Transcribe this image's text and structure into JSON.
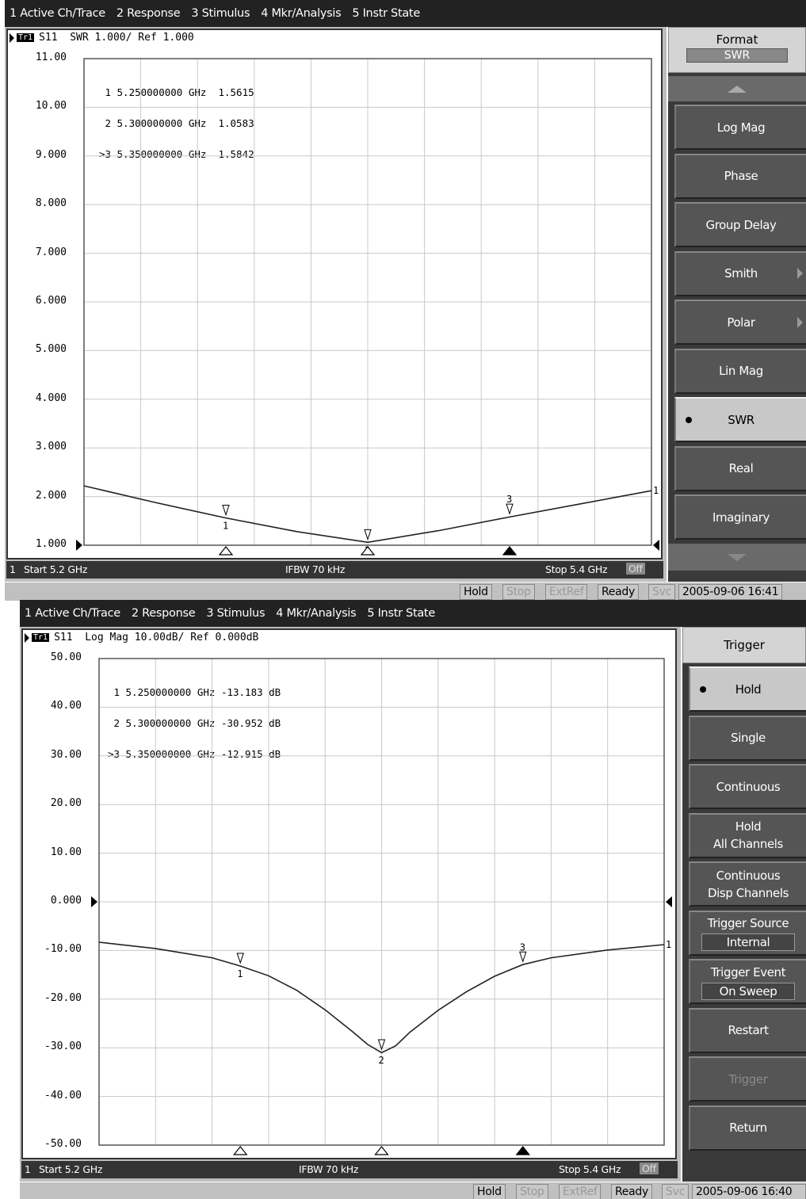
{
  "screens": [
    {
      "menu": [
        "1 Active Ch/Trace",
        "2 Response",
        "3 Stimulus",
        "4 Mkr/Analysis",
        "5 Instr State"
      ],
      "trace": {
        "badge": "Tr1",
        "header": "S11  SWR 1.000/ Ref 1.000"
      },
      "y_ticks": [
        "11.00",
        "10.00",
        "9.000",
        "8.000",
        "7.000",
        "6.000",
        "5.000",
        "4.000",
        "3.000",
        "2.000",
        "1.000"
      ],
      "markers": [
        {
          "num": "1",
          "freq": "5.250000000 GHz",
          "value": "1.5615"
        },
        {
          "num": "2",
          "freq": "5.300000000 GHz",
          "value": "1.0583"
        },
        {
          "num": ">3",
          "freq": "5.350000000 GHz",
          "value": "1.5842"
        }
      ],
      "status": {
        "channel": "1",
        "start": "Start 5.2 GHz",
        "ifbw": "IFBW 70 kHz",
        "stop": "Stop 5.4 GHz",
        "off": "Off"
      },
      "bottom": [
        "Hold",
        "Stop",
        "ExtRef",
        "Ready",
        "Svc",
        "2005-09-06 16:41"
      ],
      "softkeys": {
        "title": "Format",
        "title_value": "SWR",
        "items": [
          {
            "label": "Log Mag"
          },
          {
            "label": "Phase"
          },
          {
            "label": "Group Delay"
          },
          {
            "label": "Smith",
            "submenu": true
          },
          {
            "label": "Polar",
            "submenu": true
          },
          {
            "label": "Lin Mag"
          },
          {
            "label": "SWR",
            "selected": true
          },
          {
            "label": "Real"
          },
          {
            "label": "Imaginary"
          }
        ]
      },
      "chart_data": {
        "type": "line",
        "title": "S11  SWR 1.000/ Ref 1.000",
        "x_start_ghz": 5.2,
        "x_stop_ghz": 5.4,
        "ylim": [
          1,
          11
        ],
        "series": [
          {
            "x": [
              5.2,
              5.225,
              5.25,
              5.275,
              5.3,
              5.325,
              5.35,
              5.375,
              5.4
            ],
            "y": [
              2.22,
              1.88,
              1.56,
              1.28,
              1.06,
              1.3,
              1.58,
              1.85,
              2.12
            ]
          }
        ],
        "marker_x": [
          5.25,
          5.3,
          5.35
        ],
        "marker_y": [
          1.5615,
          1.0583,
          1.5842
        ],
        "marker_labels": [
          "1",
          "2",
          "3"
        ],
        "ref_value": 1.0,
        "end_label": "1"
      }
    },
    {
      "menu": [
        "1 Active Ch/Trace",
        "2 Response",
        "3 Stimulus",
        "4 Mkr/Analysis",
        "5 Instr State"
      ],
      "trace": {
        "badge": "Tr1",
        "header": "S11  Log Mag 10.00dB/ Ref 0.000dB"
      },
      "y_ticks": [
        "50.00",
        "40.00",
        "30.00",
        "20.00",
        "10.00",
        "0.000",
        "-10.00",
        "-20.00",
        "-30.00",
        "-40.00",
        "-50.00"
      ],
      "markers": [
        {
          "num": "1",
          "freq": "5.250000000 GHz",
          "value": "-13.183 dB"
        },
        {
          "num": "2",
          "freq": "5.300000000 GHz",
          "value": "-30.952 dB"
        },
        {
          "num": ">3",
          "freq": "5.350000000 GHz",
          "value": "-12.915 dB"
        }
      ],
      "status": {
        "channel": "1",
        "start": "Start 5.2 GHz",
        "ifbw": "IFBW 70 kHz",
        "stop": "Stop 5.4 GHz",
        "off": "Off"
      },
      "bottom": [
        "Hold",
        "Stop",
        "ExtRef",
        "Ready",
        "Svc",
        "2005-09-06 16:40"
      ],
      "softkeys": {
        "title": "Trigger",
        "items": [
          {
            "label": "Hold",
            "selected": true
          },
          {
            "label": "Single"
          },
          {
            "label": "Continuous"
          },
          {
            "label": "Hold",
            "label2": "All Channels"
          },
          {
            "label": "Continuous",
            "label2": "Disp Channels"
          },
          {
            "label": "Trigger Source",
            "value": "Internal"
          },
          {
            "label": "Trigger Event",
            "value": "On Sweep"
          },
          {
            "label": "Restart"
          },
          {
            "label": "Trigger",
            "disabled": true
          },
          {
            "label": "Return"
          }
        ]
      },
      "chart_data": {
        "type": "line",
        "title": "S11  Log Mag 10.00dB/ Ref 0.000dB",
        "x_start_ghz": 5.2,
        "x_stop_ghz": 5.4,
        "ylim": [
          -50,
          50
        ],
        "series": [
          {
            "x": [
              5.2,
              5.22,
              5.24,
              5.25,
              5.26,
              5.27,
              5.28,
              5.29,
              5.295,
              5.3,
              5.305,
              5.31,
              5.32,
              5.33,
              5.34,
              5.35,
              5.36,
              5.38,
              5.4
            ],
            "y": [
              -8.3,
              -9.6,
              -11.5,
              -13.2,
              -15.2,
              -18.2,
              -22.2,
              -26.8,
              -29.3,
              -31.0,
              -29.6,
              -26.8,
              -22.3,
              -18.5,
              -15.3,
              -12.9,
              -11.5,
              -9.9,
              -8.8
            ]
          }
        ],
        "marker_x": [
          5.25,
          5.3,
          5.35
        ],
        "marker_y": [
          -13.183,
          -30.952,
          -12.915
        ],
        "marker_labels": [
          "1",
          "2",
          "3"
        ],
        "ref_value": 0.0,
        "end_label": "1"
      }
    }
  ]
}
